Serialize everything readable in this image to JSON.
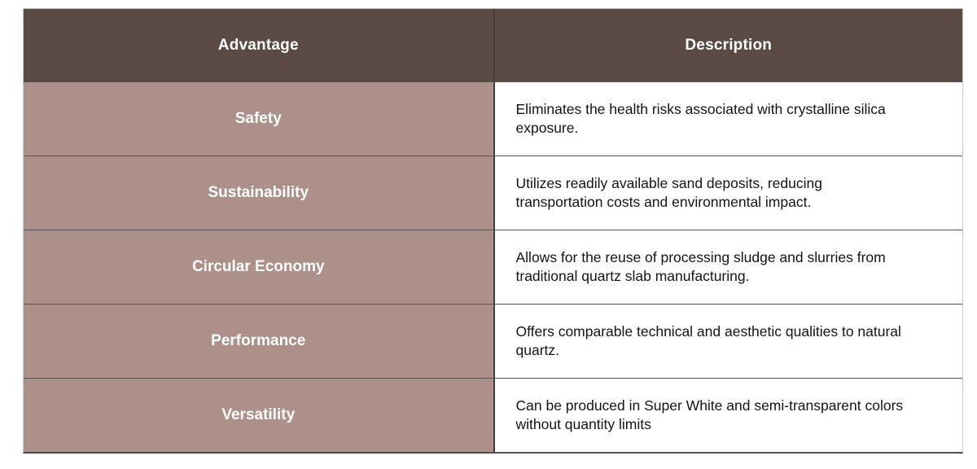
{
  "table": {
    "columns": [
      {
        "label": "Advantage"
      },
      {
        "label": "Description"
      }
    ],
    "rows": [
      {
        "advantage": "Safety",
        "description": "Eliminates the health risks associated with crystalline silica exposure."
      },
      {
        "advantage": "Sustainability",
        "description": "Utilizes readily available sand deposits, reducing transportation costs and environmental impact."
      },
      {
        "advantage": "Circular Economy",
        "description": "Allows for the reuse of processing sludge and slurries from traditional quartz slab manufacturing."
      },
      {
        "advantage": "Performance",
        "description": "Offers comparable technical and aesthetic qualities to natural quartz."
      },
      {
        "advantage": "Versatility",
        "description": "Can be produced in Super White and semi-transparent colors without quantity limits"
      }
    ]
  },
  "colors": {
    "header_bg": "#5a4a43",
    "header_text": "#ffffff",
    "advantage_bg": "#ad9089",
    "advantage_text": "#ffffff",
    "description_bg": "#ffffff",
    "description_text": "#141414",
    "row_divider": "#555250",
    "column_divider": "#443c38",
    "outer_border": "#cbc7c5"
  }
}
